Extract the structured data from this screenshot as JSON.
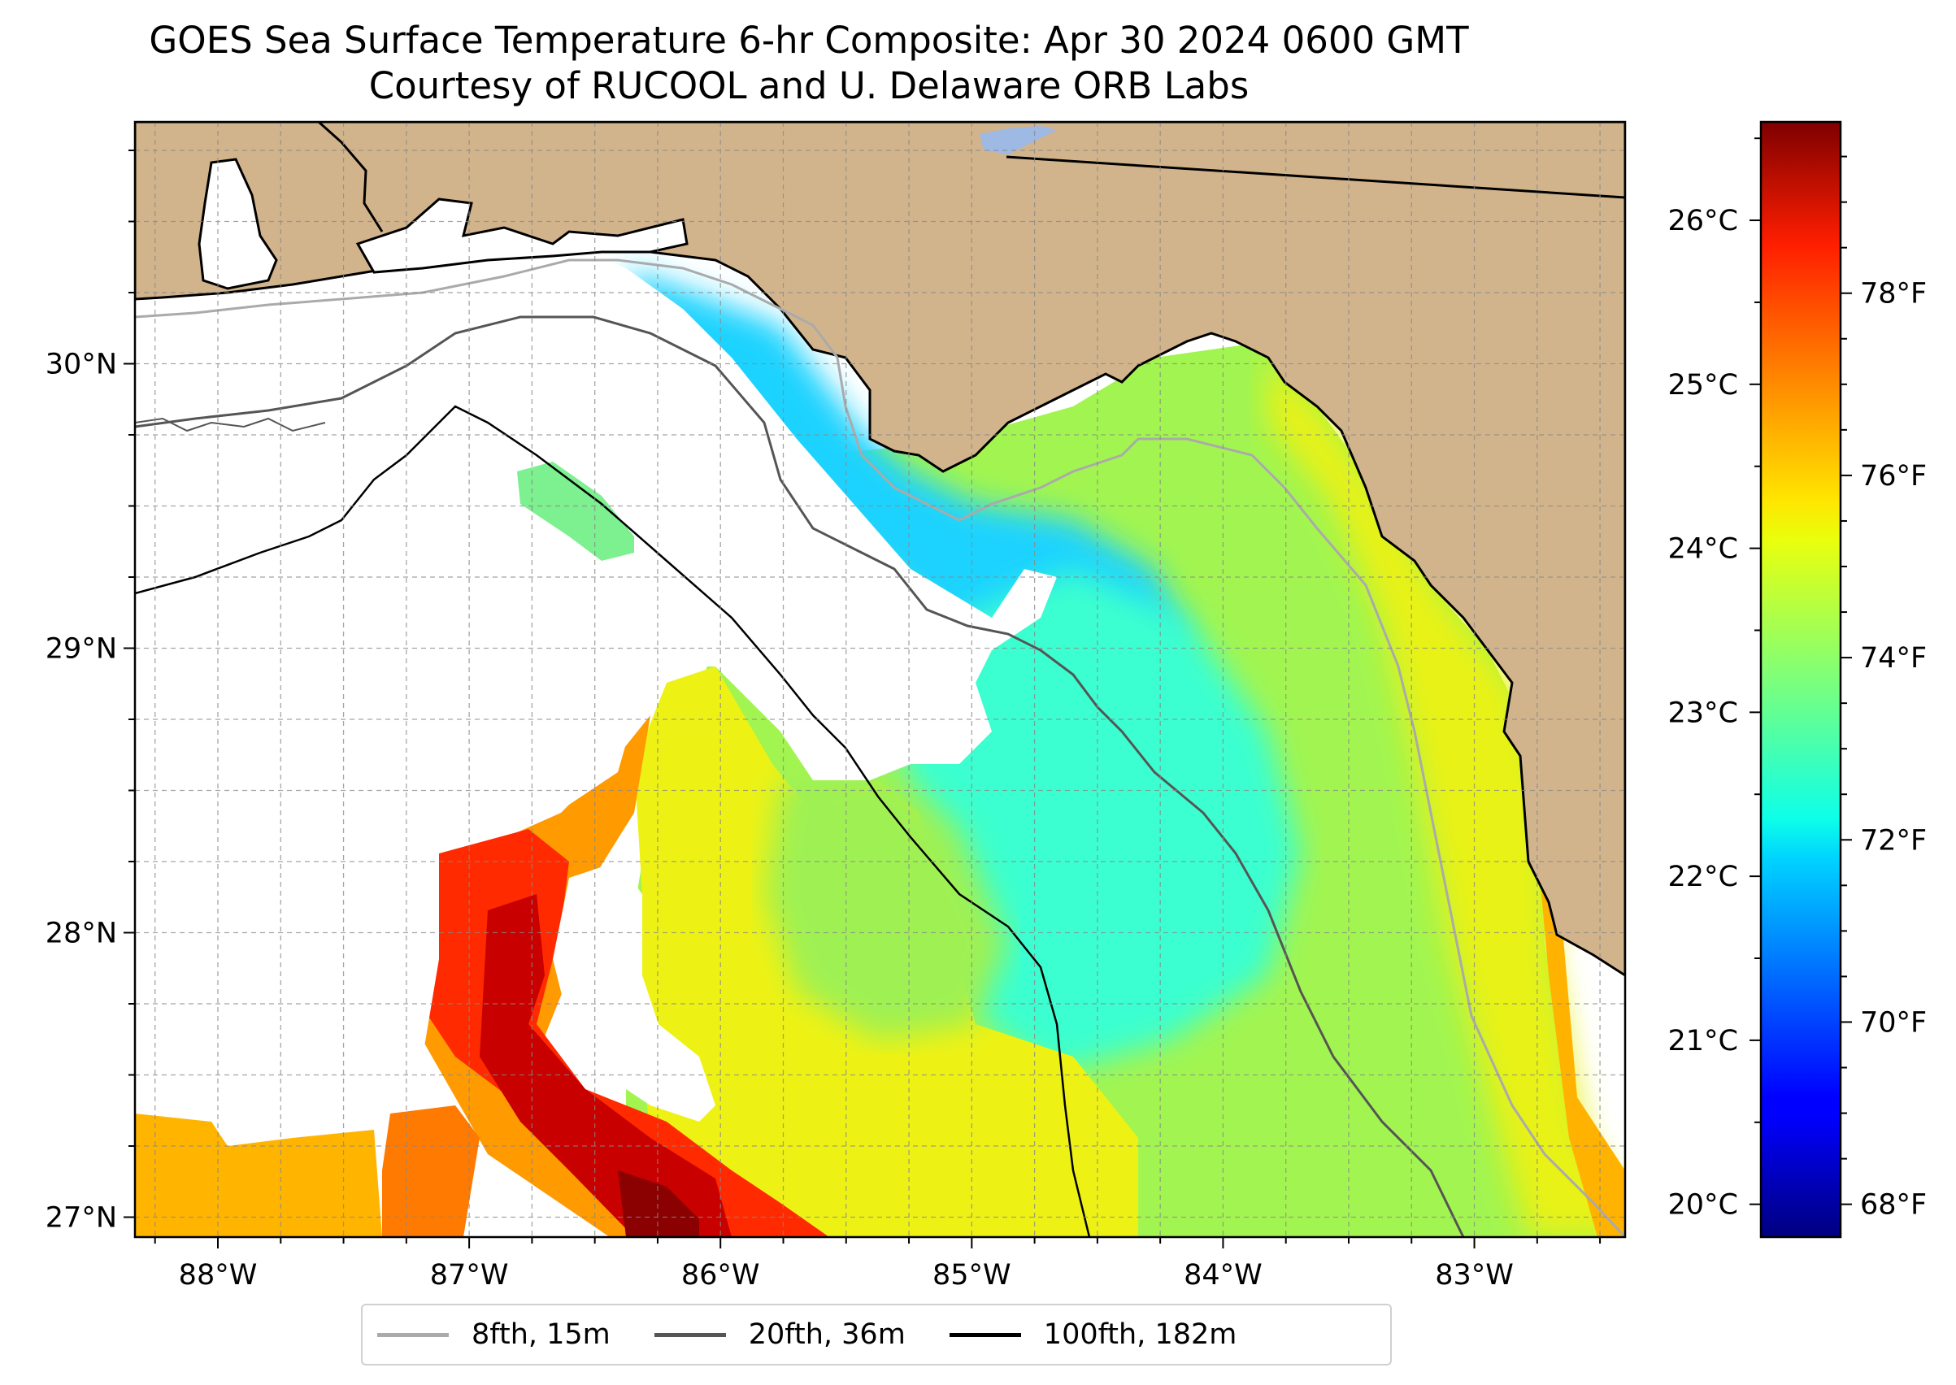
{
  "title": {
    "line1": "GOES Sea Surface Temperature 6-hr Composite: Apr 30 2024 0600 GMT",
    "line2": "Courtesy of RUCOOL and U. Delaware ORB Labs"
  },
  "map": {
    "lon_range": [
      -88.33,
      -82.4
    ],
    "lat_range": [
      26.93,
      30.85
    ],
    "lon_ticks": [
      {
        "value": -88,
        "label": "88°W"
      },
      {
        "value": -87,
        "label": "87°W"
      },
      {
        "value": -86,
        "label": "86°W"
      },
      {
        "value": -85,
        "label": "85°W"
      },
      {
        "value": -84,
        "label": "84°W"
      },
      {
        "value": -83,
        "label": "83°W"
      }
    ],
    "lat_ticks": [
      {
        "value": 30,
        "label": "30°N"
      },
      {
        "value": 29,
        "label": "29°N"
      },
      {
        "value": 28,
        "label": "28°N"
      },
      {
        "value": 27,
        "label": "27°N"
      }
    ],
    "gridlines": "dashed, every 0.25 degrees",
    "land_color": "#d2b48c",
    "no_data_color": "#ffffff",
    "lake_color": "#9db9e4"
  },
  "colorbar": {
    "colormap": "jet",
    "celsius_range": [
      19.8,
      26.6
    ],
    "celsius_ticks": [
      {
        "value": 26,
        "label": "26°C"
      },
      {
        "value": 25,
        "label": "25°C"
      },
      {
        "value": 24,
        "label": "24°C"
      },
      {
        "value": 23,
        "label": "23°C"
      },
      {
        "value": 22,
        "label": "22°C"
      },
      {
        "value": 21,
        "label": "21°C"
      },
      {
        "value": 20,
        "label": "20°C"
      }
    ],
    "fahrenheit_ticks": [
      {
        "value": 78,
        "label": "78°F"
      },
      {
        "value": 76,
        "label": "76°F"
      },
      {
        "value": 74,
        "label": "74°F"
      },
      {
        "value": 72,
        "label": "72°F"
      },
      {
        "value": 70,
        "label": "70°F"
      },
      {
        "value": 68,
        "label": "68°F"
      }
    ]
  },
  "legend": {
    "position": "bottom-center",
    "items": [
      {
        "label": "8fth, 15m",
        "color": "#aaaaaa"
      },
      {
        "label": "20fth, 36m",
        "color": "#555555"
      },
      {
        "label": "100fth, 182m",
        "color": "#000000"
      }
    ]
  }
}
